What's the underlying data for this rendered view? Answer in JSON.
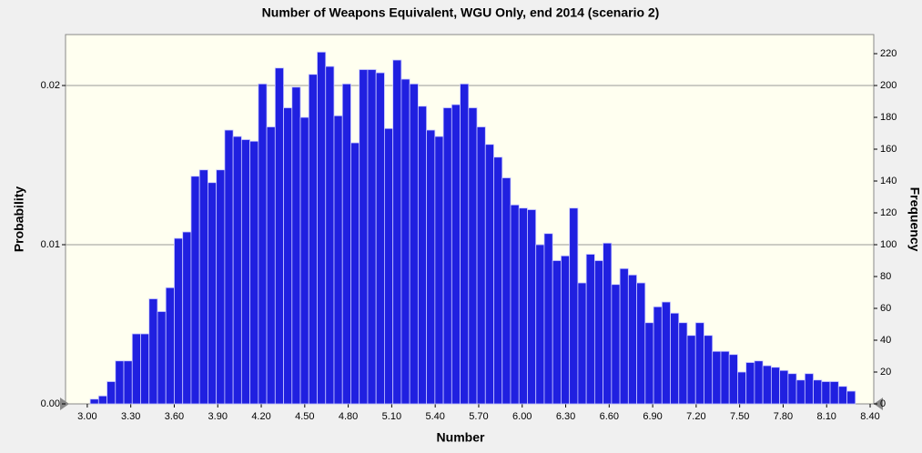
{
  "chart_data": {
    "type": "histogram",
    "title": "Number of Weapons Equivalent, WGU Only, end 2014 (scenario 2)",
    "xlabel": "Number",
    "ylabel": "Frequency",
    "y2label": "Probability",
    "color": "#2020e0",
    "bins": [
      3.02,
      3.078,
      3.136,
      3.194,
      3.252,
      3.31,
      3.368,
      3.426,
      3.484,
      3.542,
      3.6,
      3.658,
      3.716,
      3.774,
      3.832,
      3.89,
      3.948,
      4.006,
      4.064,
      4.122,
      4.18,
      4.238,
      4.296,
      4.354,
      4.412,
      4.47,
      4.528,
      4.586,
      4.644,
      4.702,
      4.76,
      4.818,
      4.876,
      4.934,
      4.992,
      5.05,
      5.108,
      5.166,
      5.224,
      5.282,
      5.34,
      5.398,
      5.456,
      5.514,
      5.572,
      5.63,
      5.688,
      5.746,
      5.804,
      5.862,
      5.92,
      5.978,
      6.036,
      6.094,
      6.152,
      6.21,
      6.268,
      6.326,
      6.384,
      6.442,
      6.5,
      6.558,
      6.616,
      6.674,
      6.732,
      6.79,
      6.848,
      6.906,
      6.964,
      7.022,
      7.08,
      7.138,
      7.196,
      7.254,
      7.312,
      7.37,
      7.428,
      7.486,
      7.544,
      7.602,
      7.66,
      7.718,
      7.776,
      7.834,
      7.892,
      7.95,
      8.008,
      8.066,
      8.124,
      8.182,
      8.24,
      8.298
    ],
    "values": [
      3,
      5,
      14,
      27,
      27,
      44,
      44,
      66,
      58,
      73,
      104,
      108,
      143,
      147,
      139,
      147,
      172,
      168,
      166,
      165,
      201,
      174,
      211,
      186,
      199,
      180,
      207,
      221,
      212,
      181,
      201,
      164,
      210,
      210,
      208,
      173,
      216,
      204,
      201,
      187,
      172,
      168,
      186,
      188,
      201,
      186,
      174,
      163,
      155,
      142,
      125,
      123,
      122,
      100,
      107,
      90,
      93,
      123,
      76,
      94,
      90,
      101,
      75,
      85,
      81,
      76,
      51,
      61,
      64,
      57,
      51,
      43,
      51,
      43,
      33,
      33,
      31,
      20,
      26,
      27,
      24,
      23,
      21,
      19,
      15,
      19,
      15,
      14,
      14,
      11,
      8
    ],
    "xlim": [
      2.85,
      8.425
    ],
    "xticks": [
      {
        "value": 3,
        "label": "3.00"
      },
      {
        "value": 3.3,
        "label": "3.30"
      },
      {
        "value": 3.6,
        "label": "3.60"
      },
      {
        "value": 3.9,
        "label": "3.90"
      },
      {
        "value": 4.2,
        "label": "4.20"
      },
      {
        "value": 4.5,
        "label": "4.50"
      },
      {
        "value": 4.8,
        "label": "4.80"
      },
      {
        "value": 5.1,
        "label": "5.10"
      },
      {
        "value": 5.4,
        "label": "5.40"
      },
      {
        "value": 5.7,
        "label": "5.70"
      },
      {
        "value": 6,
        "label": "6.00"
      },
      {
        "value": 6.3,
        "label": "6.30"
      },
      {
        "value": 6.6,
        "label": "6.60"
      },
      {
        "value": 6.9,
        "label": "6.90"
      },
      {
        "value": 7.2,
        "label": "7.20"
      },
      {
        "value": 7.5,
        "label": "7.50"
      },
      {
        "value": 7.8,
        "label": "7.80"
      },
      {
        "value": 8.1,
        "label": "8.10"
      },
      {
        "value": 8.4,
        "label": "8.40"
      }
    ],
    "ylim": [
      0,
      232
    ],
    "yticks": [
      0,
      20,
      40,
      60,
      80,
      100,
      120,
      140,
      160,
      180,
      200,
      220
    ],
    "y2lim": [
      0,
      0.0232
    ],
    "y2ticks": [
      {
        "value": 0,
        "label": "0.00"
      },
      0.01,
      0.02
    ],
    "grid": true
  }
}
